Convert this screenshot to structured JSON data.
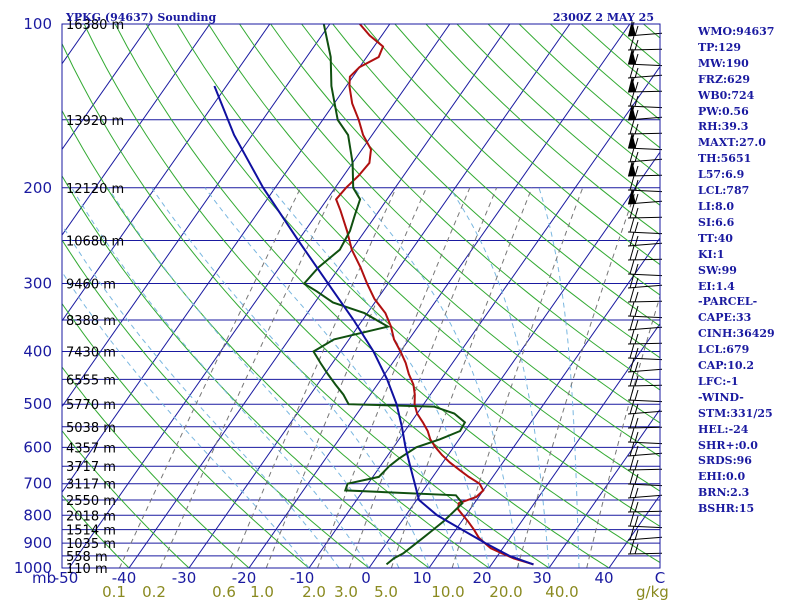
{
  "title_left": "YPKG (94637) Sounding",
  "title_right": "2300Z  2 MAY 25",
  "colors": {
    "isobar": "#1a1aa0",
    "isotherm": "#1a1aa0",
    "dry_adiabat": "#33aa33",
    "moist_adiabat": "#7ab7e0",
    "mixing_ratio": "#777777",
    "temperature": "#b01010",
    "dewpoint": "#105010",
    "parcel": "#1010a0",
    "wind": "#000000",
    "text": "#1a1aa0",
    "mixing_label": "#8a8a20"
  },
  "indices": [
    "WMO:94637",
    "TP:129",
    "MW:190",
    "FRZ:629",
    "WB0:724",
    "PW:0.56",
    "RH:39.3",
    "MAXT:27.0",
    "TH:5651",
    "L57:6.9",
    "LCL:787",
    "LI:8.0",
    "SI:6.6",
    "TT:40",
    "KI:1",
    "SW:99",
    "EI:1.4",
    "-PARCEL-",
    "CAPE:33",
    "CINH:36429",
    "LCL:679",
    "CAP:10.2",
    "LFC:-1",
    "-WIND-",
    "STM:331/25",
    "HEL:-24",
    "SHR+:0.0",
    "SRDS:96",
    "EHI:0.0",
    "BRN:2.3",
    "BSHR:15"
  ],
  "chart_data": {
    "type": "line",
    "chart_kind": "skew-T log-P",
    "x_scale": "temperature (skewed)",
    "y_scale": "log pressure",
    "xlim": [
      -50,
      50
    ],
    "ylim": [
      1000,
      100
    ],
    "x_unit_label": "mb",
    "x_ticks": [
      "-50",
      "-40",
      "-30",
      "-20",
      "-10",
      "0",
      "10",
      "20",
      "30",
      "40",
      "C"
    ],
    "mixing_ratio_unit": "g/kg",
    "mixing_ratio_ticks": [
      "0.1",
      "0.2",
      "0.6",
      "1.0",
      "2.0",
      "3.0",
      "5.0",
      "10.0",
      "20.0",
      "40.0"
    ],
    "mixing_ratio_values": [
      0.1,
      0.2,
      0.6,
      1.0,
      2.0,
      3.0,
      5.0,
      10.0,
      20.0,
      40.0
    ],
    "pressure_ticks": [
      "100",
      "200",
      "300",
      "400",
      "500",
      "600",
      "700",
      "800",
      "900",
      "1000"
    ],
    "height_levels": [
      {
        "p": 100,
        "label": "16380 m"
      },
      {
        "p": 150,
        "label": "13920 m"
      },
      {
        "p": 200,
        "label": "12120 m"
      },
      {
        "p": 250,
        "label": "10680 m"
      },
      {
        "p": 300,
        "label": "9460 m"
      },
      {
        "p": 350,
        "label": "8388 m"
      },
      {
        "p": 400,
        "label": "7430 m"
      },
      {
        "p": 450,
        "label": "6555 m"
      },
      {
        "p": 500,
        "label": "5770 m"
      },
      {
        "p": 550,
        "label": "5038 m"
      },
      {
        "p": 600,
        "label": "4357 m"
      },
      {
        "p": 650,
        "label": "3717 m"
      },
      {
        "p": 700,
        "label": "3117 m"
      },
      {
        "p": 750,
        "label": "2550 m"
      },
      {
        "p": 800,
        "label": "2018 m"
      },
      {
        "p": 850,
        "label": "1514 m"
      },
      {
        "p": 900,
        "label": "1035 m"
      },
      {
        "p": 950,
        "label": "558 m"
      },
      {
        "p": 1000,
        "label": "110 m"
      }
    ],
    "series": [
      {
        "id": "temperature",
        "points": [
          [
            985,
            27.0
          ],
          [
            960,
            23.0
          ],
          [
            940,
            20.5
          ],
          [
            920,
            18.0
          ],
          [
            900,
            16.4
          ],
          [
            880,
            14.8
          ],
          [
            850,
            13.0
          ],
          [
            820,
            11.0
          ],
          [
            800,
            9.5
          ],
          [
            780,
            8.0
          ],
          [
            760,
            7.4
          ],
          [
            740,
            9.6
          ],
          [
            720,
            10.0
          ],
          [
            700,
            8.6
          ],
          [
            680,
            6.0
          ],
          [
            660,
            3.6
          ],
          [
            640,
            1.2
          ],
          [
            620,
            -1.0
          ],
          [
            600,
            -3.0
          ],
          [
            580,
            -4.8
          ],
          [
            560,
            -6.2
          ],
          [
            540,
            -8.0
          ],
          [
            520,
            -10.0
          ],
          [
            500,
            -11.5
          ],
          [
            480,
            -12.6
          ],
          [
            460,
            -14.0
          ],
          [
            440,
            -16.0
          ],
          [
            420,
            -17.8
          ],
          [
            400,
            -20.0
          ],
          [
            380,
            -22.5
          ],
          [
            360,
            -24.5
          ],
          [
            340,
            -27.0
          ],
          [
            320,
            -30.5
          ],
          [
            300,
            -33.5
          ],
          [
            280,
            -36.5
          ],
          [
            260,
            -40.0
          ],
          [
            240,
            -43.0
          ],
          [
            220,
            -46.5
          ],
          [
            210,
            -48.5
          ],
          [
            200,
            -48.2
          ],
          [
            190,
            -47.5
          ],
          [
            180,
            -47.2
          ],
          [
            170,
            -48.5
          ],
          [
            160,
            -51.5
          ],
          [
            150,
            -54.0
          ],
          [
            140,
            -57.0
          ],
          [
            130,
            -59.5
          ],
          [
            125,
            -60.5
          ],
          [
            120,
            -60.0
          ],
          [
            115,
            -58.0
          ],
          [
            110,
            -58.5
          ],
          [
            105,
            -62.0
          ],
          [
            100,
            -65.0
          ]
        ]
      },
      {
        "id": "dewpoint",
        "points": [
          [
            985,
            2.5
          ],
          [
            960,
            3.0
          ],
          [
            940,
            4.0
          ],
          [
            900,
            5.0
          ],
          [
            880,
            5.5
          ],
          [
            860,
            6.0
          ],
          [
            820,
            7.0
          ],
          [
            790,
            7.5
          ],
          [
            760,
            8.0
          ],
          [
            735,
            6.0
          ],
          [
            720,
            -13.0
          ],
          [
            700,
            -13.4
          ],
          [
            680,
            -9.0
          ],
          [
            650,
            -8.5
          ],
          [
            630,
            -7.8
          ],
          [
            600,
            -6.2
          ],
          [
            580,
            -3.2
          ],
          [
            560,
            -0.8
          ],
          [
            540,
            -1.0
          ],
          [
            520,
            -3.8
          ],
          [
            505,
            -8.0
          ],
          [
            500,
            -22.5
          ],
          [
            480,
            -24.5
          ],
          [
            460,
            -27.0
          ],
          [
            440,
            -29.5
          ],
          [
            420,
            -32.0
          ],
          [
            400,
            -34.5
          ],
          [
            380,
            -32.5
          ],
          [
            360,
            -25.0
          ],
          [
            340,
            -30.5
          ],
          [
            325,
            -37.0
          ],
          [
            310,
            -41.0
          ],
          [
            300,
            -44.0
          ],
          [
            280,
            -43.5
          ],
          [
            260,
            -42.0
          ],
          [
            240,
            -42.5
          ],
          [
            225,
            -43.5
          ],
          [
            210,
            -44.5
          ],
          [
            200,
            -47.0
          ],
          [
            180,
            -50.0
          ],
          [
            160,
            -54.0
          ],
          [
            150,
            -57.5
          ],
          [
            130,
            -62.5
          ],
          [
            115,
            -66.0
          ],
          [
            100,
            -71.0
          ]
        ]
      },
      {
        "id": "parcel",
        "points": [
          [
            985,
            27.0
          ],
          [
            950,
            22.0
          ],
          [
            900,
            16.5
          ],
          [
            850,
            11.0
          ],
          [
            800,
            5.2
          ],
          [
            750,
            0.4
          ],
          [
            700,
            -2.2
          ],
          [
            650,
            -5.0
          ],
          [
            600,
            -8.0
          ],
          [
            550,
            -11.0
          ],
          [
            500,
            -14.5
          ],
          [
            450,
            -19.0
          ],
          [
            400,
            -24.5
          ],
          [
            350,
            -31.5
          ],
          [
            300,
            -40.0
          ],
          [
            250,
            -50.0
          ],
          [
            200,
            -62.0
          ],
          [
            160,
            -73.0
          ],
          [
            130,
            -82.0
          ]
        ]
      }
    ],
    "wind_profile": "barbs along right edge, shown as drawn"
  }
}
